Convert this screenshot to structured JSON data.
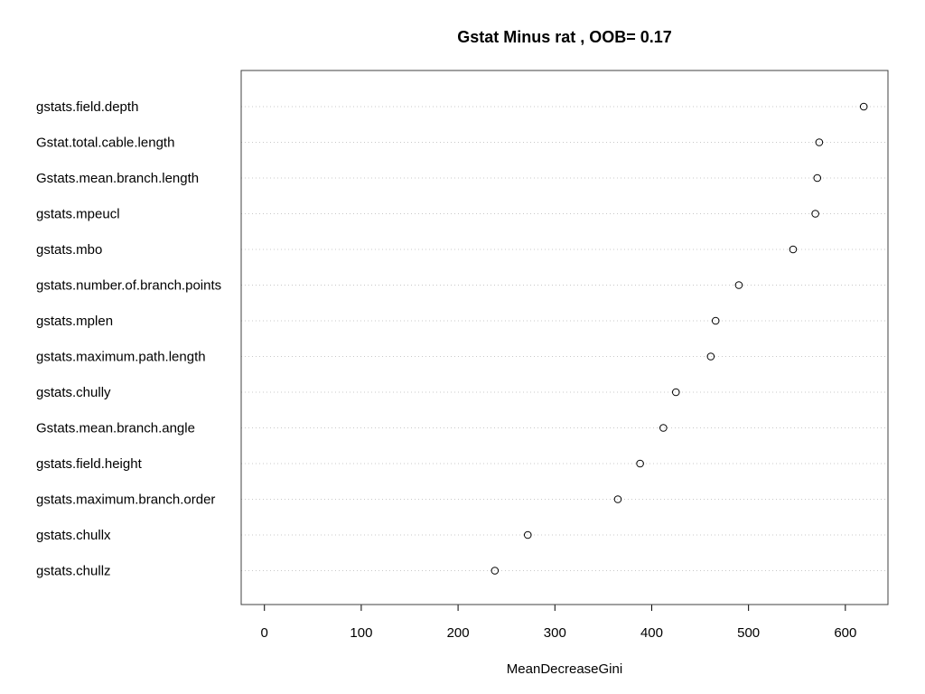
{
  "chart_data": {
    "type": "scatter",
    "subtype": "dotchart",
    "title": "Gstat Minus rat , OOB= 0.17",
    "xlabel": "MeanDecreaseGini",
    "ylabel": "",
    "xlim": [
      -24,
      644
    ],
    "xticks": [
      0,
      100,
      200,
      300,
      400,
      500,
      600
    ],
    "grid": "horizontal dotted",
    "legend": "none",
    "marker": "open-circle",
    "colors": {
      "frame": "#404040",
      "grid": "#c8c8c8",
      "marker": "#000000",
      "text": "#000000"
    },
    "categories": [
      "gstats.field.depth",
      "Gstat.total.cable.length",
      "Gstats.mean.branch.length",
      "gstats.mpeucl",
      "gstats.mbo",
      "gstats.number.of.branch.points",
      "gstats.mplen",
      "gstats.maximum.path.length",
      "gstats.chully",
      "Gstats.mean.branch.angle",
      "gstats.field.height",
      "gstats.maximum.branch.order",
      "gstats.chullx",
      "gstats.chullz"
    ],
    "values": [
      619,
      573,
      571,
      569,
      546,
      490,
      466,
      461,
      425,
      412,
      388,
      365,
      272,
      238
    ]
  }
}
